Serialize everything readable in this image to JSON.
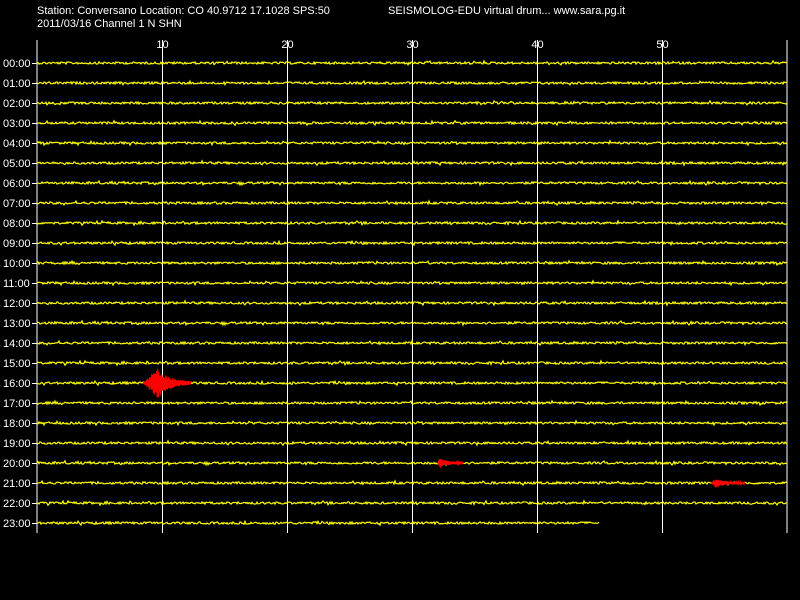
{
  "header": {
    "station_line": "Station: Conversano Location: CO 40.9712 17.1028 SPS:50",
    "date_channel_line": "2011/03/16  Channel 1 N SHN",
    "software_line": "SEISMOLOG-EDU virtual drum... www.sara.pg.it"
  },
  "colors": {
    "background": "#000000",
    "trace": "#ffff00",
    "event": "#ff0000",
    "grid": "#ffffff",
    "text": "#ffffff"
  },
  "chart_data": {
    "type": "line",
    "xlim": [
      0,
      60
    ],
    "x_ticks": [
      10,
      20,
      30,
      40,
      50
    ],
    "rows": [
      "00:00",
      "01:00",
      "02:00",
      "03:00",
      "04:00",
      "05:00",
      "06:00",
      "07:00",
      "08:00",
      "09:00",
      "10:00",
      "11:00",
      "12:00",
      "13:00",
      "14:00",
      "15:00",
      "16:00",
      "17:00",
      "18:00",
      "19:00",
      "20:00",
      "21:00",
      "22:00",
      "23:00"
    ],
    "last_row_end_minute": 45,
    "events": [
      {
        "hour": "16:00",
        "start_minute": 8.5,
        "end_minute": 12.3,
        "peak_minute": 9.7
      },
      {
        "hour": "20:00",
        "start_minute": 32.1,
        "end_minute": 34.1,
        "peak_minute": 32.2
      },
      {
        "hour": "21:00",
        "start_minute": 54.0,
        "end_minute": 56.6,
        "peak_minute": 54.3
      }
    ]
  }
}
